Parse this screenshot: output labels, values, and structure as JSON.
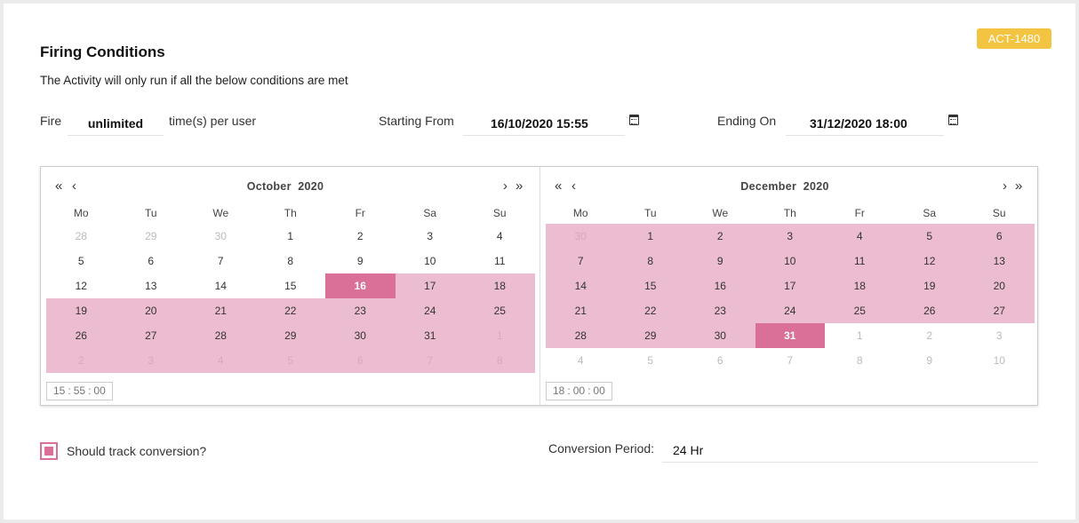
{
  "badge": "ACT-1480",
  "title": "Firing Conditions",
  "subtitle": "The Activity will only run if all the below conditions are met",
  "fire": {
    "label": "Fire",
    "value": "unlimited",
    "suffix": "time(s) per user"
  },
  "start": {
    "label": "Starting From",
    "value": "16/10/2020 15:55"
  },
  "end": {
    "label": "Ending On",
    "value": "31/12/2020 18:00"
  },
  "weekdays": [
    "Mo",
    "Tu",
    "We",
    "Th",
    "Fr",
    "Sa",
    "Su"
  ],
  "left_calendar": {
    "month": "October",
    "year": "2020",
    "nav_first": "«",
    "nav_prev": "‹",
    "nav_next": "›",
    "nav_last": "»",
    "time": {
      "hours": "15",
      "minutes": "55",
      "seconds": "00"
    },
    "rows": [
      [
        {
          "d": "28",
          "m": 1
        },
        {
          "d": "29",
          "m": 1
        },
        {
          "d": "30",
          "m": 1
        },
        {
          "d": "1"
        },
        {
          "d": "2"
        },
        {
          "d": "3"
        },
        {
          "d": "4"
        }
      ],
      [
        {
          "d": "5"
        },
        {
          "d": "6"
        },
        {
          "d": "7"
        },
        {
          "d": "8"
        },
        {
          "d": "9"
        },
        {
          "d": "10"
        },
        {
          "d": "11"
        }
      ],
      [
        {
          "d": "12"
        },
        {
          "d": "13"
        },
        {
          "d": "14"
        },
        {
          "d": "15"
        },
        {
          "d": "16",
          "s": 1
        },
        {
          "d": "17",
          "r": 1
        },
        {
          "d": "18",
          "r": 1
        }
      ],
      [
        {
          "d": "19",
          "r": 1
        },
        {
          "d": "20",
          "r": 1
        },
        {
          "d": "21",
          "r": 1
        },
        {
          "d": "22",
          "r": 1
        },
        {
          "d": "23",
          "r": 1
        },
        {
          "d": "24",
          "r": 1
        },
        {
          "d": "25",
          "r": 1
        }
      ],
      [
        {
          "d": "26",
          "r": 1
        },
        {
          "d": "27",
          "r": 1
        },
        {
          "d": "28",
          "r": 1
        },
        {
          "d": "29",
          "r": 1
        },
        {
          "d": "30",
          "r": 1
        },
        {
          "d": "31",
          "r": 1
        },
        {
          "d": "1",
          "r": 1,
          "m": 1
        }
      ],
      [
        {
          "d": "2",
          "r": 1,
          "m": 1
        },
        {
          "d": "3",
          "r": 1,
          "m": 1
        },
        {
          "d": "4",
          "r": 1,
          "m": 1
        },
        {
          "d": "5",
          "r": 1,
          "m": 1
        },
        {
          "d": "6",
          "r": 1,
          "m": 1
        },
        {
          "d": "7",
          "r": 1,
          "m": 1
        },
        {
          "d": "8",
          "r": 1,
          "m": 1
        }
      ]
    ]
  },
  "right_calendar": {
    "month": "December",
    "year": "2020",
    "nav_first": "«",
    "nav_prev": "‹",
    "nav_next": "›",
    "nav_last": "»",
    "time": {
      "hours": "18",
      "minutes": "00",
      "seconds": "00"
    },
    "rows": [
      [
        {
          "d": "30",
          "r": 1,
          "m": 1
        },
        {
          "d": "1",
          "r": 1
        },
        {
          "d": "2",
          "r": 1
        },
        {
          "d": "3",
          "r": 1
        },
        {
          "d": "4",
          "r": 1
        },
        {
          "d": "5",
          "r": 1
        },
        {
          "d": "6",
          "r": 1
        }
      ],
      [
        {
          "d": "7",
          "r": 1
        },
        {
          "d": "8",
          "r": 1
        },
        {
          "d": "9",
          "r": 1
        },
        {
          "d": "10",
          "r": 1
        },
        {
          "d": "11",
          "r": 1
        },
        {
          "d": "12",
          "r": 1
        },
        {
          "d": "13",
          "r": 1
        }
      ],
      [
        {
          "d": "14",
          "r": 1
        },
        {
          "d": "15",
          "r": 1
        },
        {
          "d": "16",
          "r": 1
        },
        {
          "d": "17",
          "r": 1
        },
        {
          "d": "18",
          "r": 1
        },
        {
          "d": "19",
          "r": 1
        },
        {
          "d": "20",
          "r": 1
        }
      ],
      [
        {
          "d": "21",
          "r": 1
        },
        {
          "d": "22",
          "r": 1
        },
        {
          "d": "23",
          "r": 1
        },
        {
          "d": "24",
          "r": 1
        },
        {
          "d": "25",
          "r": 1
        },
        {
          "d": "26",
          "r": 1
        },
        {
          "d": "27",
          "r": 1
        }
      ],
      [
        {
          "d": "28",
          "r": 1
        },
        {
          "d": "29",
          "r": 1
        },
        {
          "d": "30",
          "r": 1
        },
        {
          "d": "31",
          "s": 1
        },
        {
          "d": "1",
          "m": 1
        },
        {
          "d": "2",
          "m": 1
        },
        {
          "d": "3",
          "m": 1
        }
      ],
      [
        {
          "d": "4",
          "m": 1
        },
        {
          "d": "5",
          "m": 1
        },
        {
          "d": "6",
          "m": 1
        },
        {
          "d": "7",
          "m": 1
        },
        {
          "d": "8",
          "m": 1
        },
        {
          "d": "9",
          "m": 1
        },
        {
          "d": "10",
          "m": 1
        }
      ]
    ]
  },
  "track": {
    "label": "Should track conversion?",
    "checked": true
  },
  "conversion": {
    "label": "Conversion Period:",
    "value": "24 Hr"
  },
  "colors": {
    "accent": "#da6f98",
    "range": "#ecbcd0",
    "badge": "#f2c442"
  },
  "icons": {
    "calendar": "calendar-icon",
    "checkbox": "checkbox-checked-icon"
  }
}
